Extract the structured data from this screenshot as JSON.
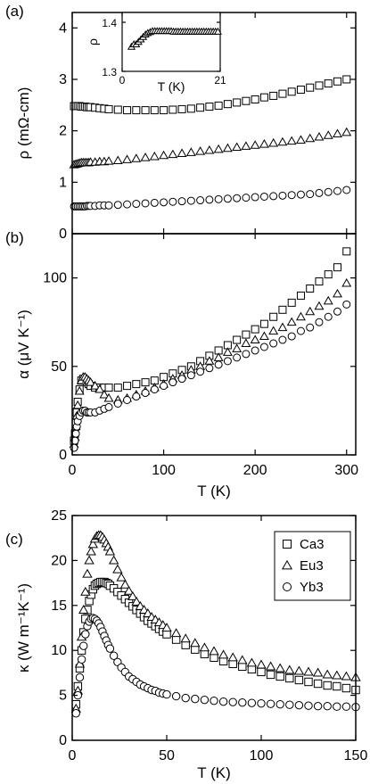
{
  "chart_data": [
    {
      "panel": "(a)",
      "type": "scatter",
      "xlim": [
        0,
        310
      ],
      "ylim": [
        0,
        4.3
      ],
      "xticks": [
        0,
        100,
        200,
        300
      ],
      "yticks": [
        0,
        1,
        2,
        3,
        4
      ],
      "ylabel": "ρ (mΩ-cm)",
      "xlabel": "",
      "series": [
        {
          "marker": "square",
          "x": [
            2,
            4,
            6,
            8,
            10,
            12,
            14,
            16,
            18,
            20,
            25,
            30,
            35,
            40,
            50,
            60,
            70,
            80,
            90,
            100,
            110,
            120,
            130,
            140,
            150,
            160,
            170,
            180,
            190,
            200,
            210,
            220,
            230,
            240,
            250,
            260,
            270,
            280,
            290,
            300
          ],
          "y": [
            2.48,
            2.48,
            2.48,
            2.48,
            2.47,
            2.47,
            2.47,
            2.46,
            2.46,
            2.46,
            2.45,
            2.44,
            2.43,
            2.42,
            2.41,
            2.4,
            2.4,
            2.4,
            2.4,
            2.4,
            2.41,
            2.42,
            2.43,
            2.45,
            2.47,
            2.49,
            2.52,
            2.55,
            2.58,
            2.61,
            2.65,
            2.68,
            2.72,
            2.76,
            2.8,
            2.84,
            2.88,
            2.92,
            2.96,
            3.0
          ]
        },
        {
          "marker": "triangle",
          "x": [
            2,
            4,
            6,
            8,
            10,
            12,
            14,
            16,
            18,
            20,
            25,
            30,
            35,
            40,
            50,
            60,
            70,
            80,
            90,
            100,
            110,
            120,
            130,
            140,
            150,
            160,
            170,
            180,
            190,
            200,
            210,
            220,
            230,
            240,
            250,
            260,
            270,
            280,
            290,
            300
          ],
          "y": [
            1.34,
            1.35,
            1.36,
            1.37,
            1.38,
            1.38,
            1.38,
            1.38,
            1.38,
            1.39,
            1.39,
            1.4,
            1.4,
            1.41,
            1.42,
            1.44,
            1.46,
            1.48,
            1.5,
            1.52,
            1.54,
            1.56,
            1.58,
            1.6,
            1.62,
            1.64,
            1.66,
            1.68,
            1.7,
            1.72,
            1.74,
            1.76,
            1.78,
            1.8,
            1.82,
            1.85,
            1.88,
            1.91,
            1.94,
            1.97
          ]
        },
        {
          "marker": "circle",
          "x": [
            2,
            4,
            6,
            8,
            10,
            12,
            14,
            16,
            18,
            20,
            25,
            30,
            35,
            40,
            50,
            60,
            70,
            80,
            90,
            100,
            110,
            120,
            130,
            140,
            150,
            160,
            170,
            180,
            190,
            200,
            210,
            220,
            230,
            240,
            250,
            260,
            270,
            280,
            290,
            300
          ],
          "y": [
            0.53,
            0.53,
            0.53,
            0.53,
            0.53,
            0.53,
            0.53,
            0.54,
            0.54,
            0.54,
            0.54,
            0.55,
            0.55,
            0.55,
            0.56,
            0.57,
            0.58,
            0.59,
            0.6,
            0.61,
            0.62,
            0.63,
            0.64,
            0.65,
            0.66,
            0.67,
            0.68,
            0.69,
            0.7,
            0.71,
            0.72,
            0.73,
            0.74,
            0.75,
            0.76,
            0.77,
            0.79,
            0.81,
            0.83,
            0.85
          ]
        }
      ],
      "inset": {
        "type": "scatter",
        "xlim": [
          0,
          21
        ],
        "ylim": [
          1.3,
          1.42
        ],
        "xticks": [
          0,
          21
        ],
        "yticks": [
          1.3,
          1.4
        ],
        "xlabel": "T (K)",
        "ylabel": "ρ",
        "x": [
          2,
          2.5,
          3,
          3.5,
          4,
          4.5,
          5,
          5.5,
          6,
          6.5,
          7,
          7.5,
          8,
          8.5,
          9,
          9.5,
          10,
          10.5,
          11,
          11.5,
          12,
          12.5,
          13,
          13.5,
          14,
          14.5,
          15,
          15.5,
          16,
          16.5,
          17,
          17.5,
          18,
          18.5,
          19,
          19.5,
          20,
          20.5
        ],
        "y": [
          1.35,
          1.355,
          1.355,
          1.36,
          1.365,
          1.37,
          1.375,
          1.378,
          1.38,
          1.382,
          1.382,
          1.382,
          1.382,
          1.382,
          1.382,
          1.382,
          1.382,
          1.382,
          1.381,
          1.381,
          1.381,
          1.381,
          1.381,
          1.381,
          1.381,
          1.381,
          1.381,
          1.381,
          1.381,
          1.381,
          1.381,
          1.381,
          1.381,
          1.381,
          1.381,
          1.381,
          1.381,
          1.381
        ]
      }
    },
    {
      "panel": "(b)",
      "type": "scatter",
      "xlim": [
        0,
        310
      ],
      "ylim": [
        0,
        125
      ],
      "xticks": [
        0,
        100,
        200,
        300
      ],
      "yticks": [
        0,
        50,
        100
      ],
      "ylabel": "α (μV K⁻¹)",
      "xlabel": "T (K)",
      "series": [
        {
          "marker": "square",
          "x": [
            2,
            3,
            4,
            5,
            6,
            8,
            10,
            12,
            14,
            16,
            18,
            20,
            25,
            30,
            35,
            40,
            50,
            60,
            70,
            80,
            90,
            100,
            110,
            120,
            130,
            140,
            150,
            160,
            170,
            180,
            190,
            200,
            210,
            220,
            230,
            240,
            250,
            260,
            270,
            280,
            290,
            300
          ],
          "y": [
            8,
            12,
            18,
            24,
            30,
            37,
            42,
            43,
            42,
            41,
            40,
            39,
            38,
            38,
            38,
            38,
            38,
            39,
            40,
            41,
            42,
            44,
            46,
            48,
            50,
            53,
            56,
            59,
            62,
            65,
            68,
            71,
            74,
            78,
            82,
            86,
            90,
            94,
            98,
            102,
            106,
            115
          ]
        },
        {
          "marker": "triangle",
          "x": [
            2,
            3,
            4,
            5,
            6,
            8,
            10,
            12,
            14,
            16,
            18,
            20,
            25,
            30,
            35,
            40,
            50,
            60,
            70,
            80,
            90,
            100,
            110,
            120,
            130,
            140,
            150,
            160,
            170,
            180,
            190,
            200,
            210,
            220,
            230,
            240,
            250,
            260,
            270,
            280,
            290,
            300
          ],
          "y": [
            6,
            10,
            16,
            22,
            28,
            36,
            42,
            44,
            44,
            43,
            42,
            41,
            39,
            37,
            34,
            32,
            31,
            32,
            34,
            36,
            38,
            40,
            43,
            45,
            48,
            50,
            53,
            55,
            58,
            60,
            63,
            65,
            67,
            70,
            72,
            75,
            78,
            81,
            84,
            87,
            91,
            97
          ]
        },
        {
          "marker": "circle",
          "x": [
            2,
            3,
            4,
            5,
            6,
            8,
            10,
            12,
            14,
            16,
            18,
            20,
            25,
            30,
            35,
            40,
            50,
            60,
            70,
            80,
            90,
            100,
            110,
            120,
            130,
            140,
            150,
            160,
            170,
            180,
            190,
            200,
            210,
            220,
            230,
            240,
            250,
            260,
            270,
            280,
            290,
            300
          ],
          "y": [
            4,
            8,
            12,
            16,
            19,
            22,
            24,
            25,
            25,
            24,
            24,
            24,
            24,
            25,
            26,
            27,
            29,
            31,
            33,
            35,
            37,
            39,
            41,
            43,
            45,
            47,
            49,
            51,
            53,
            55,
            57,
            59,
            61,
            63,
            65,
            67,
            70,
            72,
            75,
            78,
            81,
            85
          ]
        }
      ]
    },
    {
      "panel": "(c)",
      "type": "scatter",
      "xlim": [
        0,
        150
      ],
      "ylim": [
        0,
        25
      ],
      "xticks": [
        0,
        50,
        100,
        150
      ],
      "yticks": [
        0,
        5,
        10,
        15,
        20,
        25
      ],
      "ylabel": "κ (W m⁻¹K⁻¹)",
      "xlabel": "T (K)",
      "legend": "top-right",
      "series": [
        {
          "name": "Ca3",
          "marker": "square",
          "x": [
            2,
            3,
            4,
            5,
            6,
            7,
            8,
            9,
            10,
            11,
            12,
            13,
            14,
            15,
            16,
            17,
            18,
            19,
            20,
            22,
            24,
            26,
            28,
            30,
            32,
            34,
            36,
            38,
            40,
            42,
            44,
            46,
            48,
            50,
            55,
            60,
            65,
            70,
            75,
            80,
            85,
            90,
            95,
            100,
            105,
            110,
            115,
            120,
            125,
            130,
            135,
            140,
            145,
            150
          ],
          "y": [
            4,
            6,
            8,
            10,
            12,
            13.5,
            14.5,
            15.5,
            16.2,
            16.8,
            17.2,
            17.4,
            17.5,
            17.6,
            17.6,
            17.6,
            17.5,
            17.4,
            17.2,
            16.9,
            16.5,
            16.1,
            15.7,
            15.3,
            14.9,
            14.5,
            14.1,
            13.7,
            13.3,
            13,
            12.7,
            12.4,
            12.1,
            11.8,
            11.2,
            10.6,
            10.1,
            9.6,
            9.2,
            8.8,
            8.5,
            8.2,
            7.9,
            7.6,
            7.3,
            7.1,
            6.9,
            6.7,
            6.5,
            6.3,
            6.1,
            6,
            5.8,
            5.6
          ]
        },
        {
          "name": "Eu3",
          "marker": "triangle",
          "x": [
            2,
            3,
            4,
            5,
            6,
            7,
            8,
            9,
            10,
            11,
            12,
            13,
            14,
            15,
            16,
            17,
            18,
            19,
            20,
            22,
            24,
            26,
            28,
            30,
            32,
            34,
            36,
            38,
            40,
            42,
            44,
            46,
            48,
            50,
            55,
            60,
            65,
            70,
            75,
            80,
            85,
            90,
            95,
            100,
            105,
            110,
            115,
            120,
            125,
            130,
            135,
            140,
            145,
            150
          ],
          "y": [
            3.5,
            5.5,
            8.5,
            11.5,
            14.5,
            16.5,
            18.5,
            20,
            21,
            21.8,
            22.4,
            22.7,
            22.8,
            22.8,
            22.6,
            22.3,
            21.9,
            21.5,
            21,
            20,
            19,
            18.1,
            17.3,
            16.6,
            16,
            15.4,
            14.9,
            14.5,
            14.1,
            13.7,
            13.4,
            13.1,
            12.8,
            12.5,
            11.9,
            11.3,
            10.8,
            10.3,
            9.9,
            9.5,
            9.2,
            8.9,
            8.6,
            8.4,
            8.2,
            8,
            7.8,
            7.7,
            7.6,
            7.5,
            7.3,
            7.2,
            7.1,
            7
          ]
        },
        {
          "name": "Yb3",
          "marker": "circle",
          "x": [
            2,
            3,
            4,
            5,
            6,
            7,
            8,
            9,
            10,
            11,
            12,
            13,
            14,
            15,
            16,
            17,
            18,
            19,
            20,
            22,
            24,
            26,
            28,
            30,
            32,
            34,
            36,
            38,
            40,
            42,
            44,
            46,
            48,
            50,
            55,
            60,
            65,
            70,
            75,
            80,
            85,
            90,
            95,
            100,
            105,
            110,
            115,
            120,
            125,
            130,
            135,
            140,
            145,
            150
          ],
          "y": [
            3,
            5,
            7,
            9,
            10.5,
            11.8,
            12.7,
            13.2,
            13.5,
            13.6,
            13.5,
            13.3,
            13,
            12.6,
            12.1,
            11.6,
            11.1,
            10.6,
            10.2,
            9.4,
            8.7,
            8.1,
            7.6,
            7.1,
            6.8,
            6.5,
            6.2,
            6,
            5.8,
            5.6,
            5.5,
            5.3,
            5.2,
            5.1,
            4.9,
            4.7,
            4.6,
            4.5,
            4.4,
            4.3,
            4.25,
            4.2,
            4.15,
            4.1,
            4.05,
            4,
            3.95,
            3.9,
            3.85,
            3.8,
            3.8,
            3.75,
            3.75,
            3.7
          ]
        }
      ]
    }
  ]
}
